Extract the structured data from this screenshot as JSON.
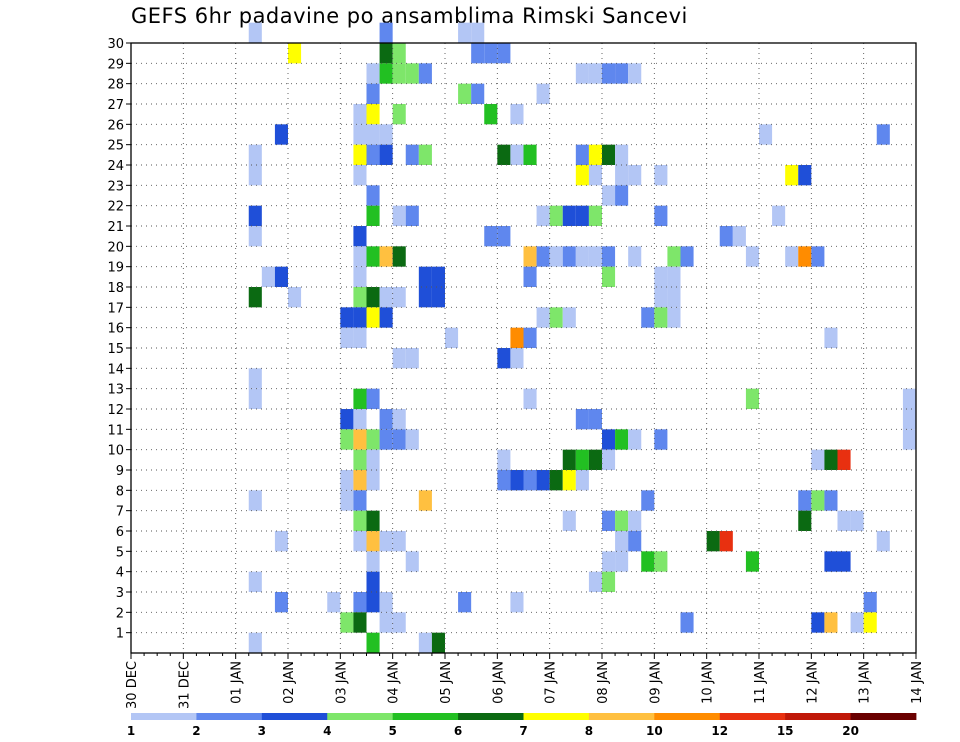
{
  "chart_data": {
    "type": "heatmap",
    "title": "GEFS 6hr padavine po ansamblima Rimski Sancevi",
    "x_tick_labels": [
      "30 DEC",
      "31 DEC",
      "01 JAN",
      "02 JAN",
      "03 JAN",
      "04 JAN",
      "05 JAN",
      "06 JAN",
      "07 JAN",
      "08 JAN",
      "09 JAN",
      "10 JAN",
      "11 JAN",
      "12 JAN",
      "13 JAN",
      "14 JAN"
    ],
    "y_tick_labels": [
      "1",
      "2",
      "3",
      "4",
      "5",
      "6",
      "7",
      "8",
      "9",
      "10",
      "11",
      "12",
      "13",
      "14",
      "15",
      "16",
      "17",
      "18",
      "19",
      "20",
      "21",
      "22",
      "23",
      "24",
      "25",
      "26",
      "27",
      "28",
      "29",
      "30"
    ],
    "x_unit": "6h steps since 30 DEC 00Z",
    "x_range": [
      0,
      60
    ],
    "y_range": [
      0,
      30
    ],
    "grid": true,
    "color_levels": [
      1,
      2,
      3,
      4,
      5,
      6,
      7,
      8,
      10,
      12,
      15,
      20
    ],
    "color_scale": [
      "#b3c6f5",
      "#5f87ee",
      "#1f4fd8",
      "#7ee66a",
      "#22c022",
      "#0b6a12",
      "#ffff00",
      "#ffc040",
      "#ff8c00",
      "#e83010",
      "#c01808",
      "#6a0000"
    ],
    "cells": [
      [
        9,
        30,
        0
      ],
      [
        19,
        30,
        1
      ],
      [
        25,
        30,
        0
      ],
      [
        26,
        30,
        0
      ],
      [
        12,
        29,
        6
      ],
      [
        19,
        29,
        5
      ],
      [
        20,
        29,
        3
      ],
      [
        26,
        29,
        1
      ],
      [
        27,
        29,
        1
      ],
      [
        28,
        29,
        1
      ],
      [
        18,
        28,
        0
      ],
      [
        19,
        28,
        4
      ],
      [
        20,
        28,
        3
      ],
      [
        21,
        28,
        3
      ],
      [
        22,
        28,
        1
      ],
      [
        34,
        28,
        0
      ],
      [
        35,
        28,
        0
      ],
      [
        36,
        28,
        1
      ],
      [
        37,
        28,
        1
      ],
      [
        38,
        28,
        0
      ],
      [
        18,
        27,
        1
      ],
      [
        25,
        27,
        3
      ],
      [
        26,
        27,
        1
      ],
      [
        31,
        27,
        0
      ],
      [
        17,
        26,
        0
      ],
      [
        18,
        26,
        6
      ],
      [
        20,
        26,
        3
      ],
      [
        27,
        26,
        4
      ],
      [
        29,
        26,
        0
      ],
      [
        11,
        25,
        2
      ],
      [
        17,
        25,
        0
      ],
      [
        18,
        25,
        0
      ],
      [
        19,
        25,
        0
      ],
      [
        48,
        25,
        0
      ],
      [
        57,
        25,
        1
      ],
      [
        9,
        24,
        0
      ],
      [
        17,
        24,
        6
      ],
      [
        18,
        24,
        1
      ],
      [
        19,
        24,
        2
      ],
      [
        21,
        24,
        1
      ],
      [
        22,
        24,
        3
      ],
      [
        28,
        24,
        5
      ],
      [
        29,
        24,
        0
      ],
      [
        30,
        24,
        4
      ],
      [
        34,
        24,
        1
      ],
      [
        35,
        24,
        6
      ],
      [
        36,
        24,
        5
      ],
      [
        37,
        24,
        0
      ],
      [
        9,
        23,
        0
      ],
      [
        17,
        23,
        0
      ],
      [
        34,
        23,
        6
      ],
      [
        35,
        23,
        0
      ],
      [
        37,
        23,
        0
      ],
      [
        38,
        23,
        0
      ],
      [
        40,
        23,
        0
      ],
      [
        50,
        23,
        6
      ],
      [
        51,
        23,
        2
      ],
      [
        18,
        22,
        1
      ],
      [
        36,
        22,
        0
      ],
      [
        37,
        22,
        1
      ],
      [
        9,
        21,
        2
      ],
      [
        18,
        21,
        4
      ],
      [
        20,
        21,
        0
      ],
      [
        21,
        21,
        1
      ],
      [
        31,
        21,
        0
      ],
      [
        32,
        21,
        3
      ],
      [
        33,
        21,
        2
      ],
      [
        34,
        21,
        2
      ],
      [
        35,
        21,
        3
      ],
      [
        40,
        21,
        1
      ],
      [
        49,
        21,
        0
      ],
      [
        9,
        20,
        0
      ],
      [
        17,
        20,
        2
      ],
      [
        27,
        20,
        1
      ],
      [
        28,
        20,
        1
      ],
      [
        45,
        20,
        1
      ],
      [
        46,
        20,
        0
      ],
      [
        17,
        19,
        0
      ],
      [
        18,
        19,
        4
      ],
      [
        19,
        19,
        7
      ],
      [
        20,
        19,
        5
      ],
      [
        30,
        19,
        7
      ],
      [
        31,
        19,
        1
      ],
      [
        32,
        19,
        0
      ],
      [
        33,
        19,
        1
      ],
      [
        34,
        19,
        0
      ],
      [
        35,
        19,
        0
      ],
      [
        36,
        19,
        1
      ],
      [
        38,
        19,
        0
      ],
      [
        41,
        19,
        3
      ],
      [
        42,
        19,
        1
      ],
      [
        47,
        19,
        0
      ],
      [
        50,
        19,
        0
      ],
      [
        51,
        19,
        8
      ],
      [
        52,
        19,
        1
      ],
      [
        10,
        18,
        0
      ],
      [
        11,
        18,
        2
      ],
      [
        17,
        18,
        0
      ],
      [
        22,
        18,
        2
      ],
      [
        23,
        18,
        2
      ],
      [
        30,
        18,
        1
      ],
      [
        36,
        18,
        3
      ],
      [
        40,
        18,
        0
      ],
      [
        41,
        18,
        0
      ],
      [
        9,
        17,
        5
      ],
      [
        12,
        17,
        0
      ],
      [
        17,
        17,
        3
      ],
      [
        18,
        17,
        5
      ],
      [
        19,
        17,
        0
      ],
      [
        20,
        17,
        0
      ],
      [
        22,
        17,
        2
      ],
      [
        23,
        17,
        2
      ],
      [
        40,
        17,
        0
      ],
      [
        41,
        17,
        0
      ],
      [
        16,
        16,
        2
      ],
      [
        17,
        16,
        2
      ],
      [
        18,
        16,
        6
      ],
      [
        19,
        16,
        2
      ],
      [
        31,
        16,
        0
      ],
      [
        32,
        16,
        3
      ],
      [
        33,
        16,
        0
      ],
      [
        39,
        16,
        1
      ],
      [
        40,
        16,
        3
      ],
      [
        41,
        16,
        0
      ],
      [
        16,
        15,
        0
      ],
      [
        17,
        15,
        0
      ],
      [
        24,
        15,
        0
      ],
      [
        29,
        15,
        8
      ],
      [
        30,
        15,
        1
      ],
      [
        53,
        15,
        0
      ],
      [
        20,
        14,
        0
      ],
      [
        21,
        14,
        0
      ],
      [
        28,
        14,
        2
      ],
      [
        29,
        14,
        0
      ],
      [
        9,
        13,
        0
      ],
      [
        9,
        12,
        0
      ],
      [
        17,
        12,
        4
      ],
      [
        18,
        12,
        1
      ],
      [
        30,
        12,
        0
      ],
      [
        47,
        12,
        3
      ],
      [
        59,
        12,
        0
      ],
      [
        16,
        11,
        2
      ],
      [
        17,
        11,
        0
      ],
      [
        19,
        11,
        1
      ],
      [
        20,
        11,
        0
      ],
      [
        34,
        11,
        1
      ],
      [
        35,
        11,
        1
      ],
      [
        59,
        11,
        0
      ],
      [
        16,
        10,
        3
      ],
      [
        17,
        10,
        7
      ],
      [
        18,
        10,
        3
      ],
      [
        19,
        10,
        1
      ],
      [
        20,
        10,
        1
      ],
      [
        21,
        10,
        0
      ],
      [
        36,
        10,
        2
      ],
      [
        37,
        10,
        4
      ],
      [
        38,
        10,
        0
      ],
      [
        40,
        10,
        1
      ],
      [
        59,
        10,
        0
      ],
      [
        17,
        9,
        3
      ],
      [
        18,
        9,
        0
      ],
      [
        28,
        9,
        0
      ],
      [
        33,
        9,
        5
      ],
      [
        34,
        9,
        4
      ],
      [
        35,
        9,
        5
      ],
      [
        36,
        9,
        0
      ],
      [
        52,
        9,
        0
      ],
      [
        53,
        9,
        5
      ],
      [
        54,
        9,
        9
      ],
      [
        16,
        8,
        0
      ],
      [
        17,
        8,
        7
      ],
      [
        18,
        8,
        0
      ],
      [
        28,
        8,
        1
      ],
      [
        29,
        8,
        2
      ],
      [
        30,
        8,
        1
      ],
      [
        31,
        8,
        2
      ],
      [
        32,
        8,
        5
      ],
      [
        33,
        8,
        6
      ],
      [
        34,
        8,
        0
      ],
      [
        9,
        7,
        0
      ],
      [
        16,
        7,
        0
      ],
      [
        17,
        7,
        1
      ],
      [
        22,
        7,
        7
      ],
      [
        39,
        7,
        1
      ],
      [
        51,
        7,
        1
      ],
      [
        52,
        7,
        3
      ],
      [
        53,
        7,
        1
      ],
      [
        17,
        6,
        3
      ],
      [
        18,
        6,
        5
      ],
      [
        33,
        6,
        0
      ],
      [
        36,
        6,
        1
      ],
      [
        37,
        6,
        3
      ],
      [
        38,
        6,
        0
      ],
      [
        51,
        6,
        5
      ],
      [
        54,
        6,
        0
      ],
      [
        55,
        6,
        0
      ],
      [
        11,
        5,
        0
      ],
      [
        17,
        5,
        0
      ],
      [
        18,
        5,
        7
      ],
      [
        19,
        5,
        0
      ],
      [
        20,
        5,
        0
      ],
      [
        37,
        5,
        0
      ],
      [
        38,
        5,
        1
      ],
      [
        44,
        5,
        5
      ],
      [
        45,
        5,
        9
      ],
      [
        57,
        5,
        0
      ],
      [
        18,
        4,
        0
      ],
      [
        21,
        4,
        0
      ],
      [
        36,
        4,
        0
      ],
      [
        37,
        4,
        0
      ],
      [
        39,
        4,
        4
      ],
      [
        40,
        4,
        3
      ],
      [
        47,
        4,
        4
      ],
      [
        53,
        4,
        2
      ],
      [
        54,
        4,
        2
      ],
      [
        9,
        3,
        0
      ],
      [
        18,
        3,
        2
      ],
      [
        35,
        3,
        0
      ],
      [
        36,
        3,
        3
      ],
      [
        11,
        2,
        1
      ],
      [
        15,
        2,
        0
      ],
      [
        17,
        2,
        1
      ],
      [
        18,
        2,
        2
      ],
      [
        19,
        2,
        0
      ],
      [
        25,
        2,
        1
      ],
      [
        29,
        2,
        0
      ],
      [
        56,
        2,
        1
      ],
      [
        16,
        1,
        3
      ],
      [
        17,
        1,
        5
      ],
      [
        19,
        1,
        0
      ],
      [
        20,
        1,
        0
      ],
      [
        42,
        1,
        1
      ],
      [
        52,
        1,
        2
      ],
      [
        53,
        1,
        7
      ],
      [
        55,
        1,
        0
      ],
      [
        56,
        1,
        6
      ],
      [
        9,
        0,
        0
      ],
      [
        18,
        0,
        4
      ],
      [
        22,
        0,
        0
      ],
      [
        23,
        0,
        5
      ]
    ],
    "legend": {
      "position": "bottom",
      "labels": [
        "1",
        "2",
        "3",
        "4",
        "5",
        "6",
        "7",
        "8",
        "10",
        "12",
        "15",
        "20"
      ]
    }
  }
}
